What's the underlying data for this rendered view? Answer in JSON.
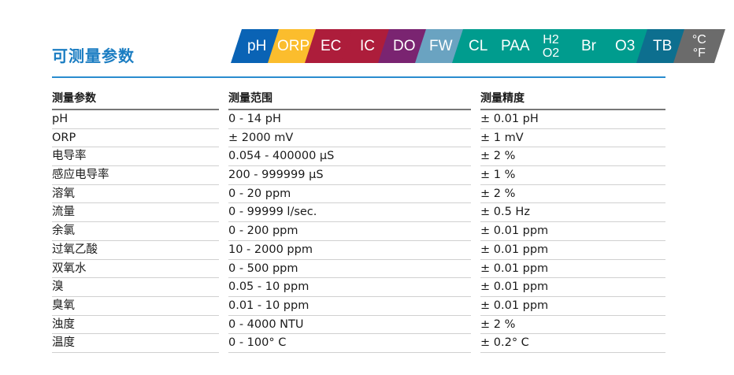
{
  "title": "可测量参数",
  "tiles": [
    {
      "label": "pH",
      "color": "#0a63b5"
    },
    {
      "label": "ORP",
      "color": "#fbbd2d"
    },
    {
      "label": "EC",
      "color": "#ad1d3b"
    },
    {
      "label": "IC",
      "color": "#ad1d3b"
    },
    {
      "label": "DO",
      "color": "#7a2471"
    },
    {
      "label": "FW",
      "color": "#6aa3c1"
    },
    {
      "label": "CL",
      "color": "#009c8e"
    },
    {
      "label": "PAA",
      "color": "#009c8e"
    },
    {
      "label": "H2\nO2",
      "color": "#009c8e"
    },
    {
      "label": "Br",
      "color": "#009c8e"
    },
    {
      "label": "O3",
      "color": "#009c8e"
    },
    {
      "label": "TB",
      "color": "#0d6f8f"
    },
    {
      "label": "°C\n°F",
      "color": "#6b6b6b"
    }
  ],
  "table": {
    "headers": [
      "测量参数",
      "测量范围",
      "测量精度"
    ],
    "rows": [
      [
        "pH",
        "0 - 14 pH",
        "± 0.01 pH"
      ],
      [
        "ORP",
        "± 2000 mV",
        "± 1 mV"
      ],
      [
        "电导率",
        "0.054 - 400000 µS",
        "± 2 %"
      ],
      [
        "感应电导率",
        "200 - 999999 µS",
        "± 1 %"
      ],
      [
        "溶氧",
        "0 - 20 ppm",
        "± 2 %"
      ],
      [
        "流量",
        "0 - 99999 l/sec.",
        "± 0.5 Hz"
      ],
      [
        "余氯",
        "0 - 200 ppm",
        "± 0.01 ppm"
      ],
      [
        "过氧乙酸",
        "10 - 2000 ppm",
        "± 0.01 ppm"
      ],
      [
        "双氧水",
        "0 - 500 ppm",
        "± 0.01 ppm"
      ],
      [
        "溴",
        "0.05 - 10 ppm",
        "± 0.01 ppm"
      ],
      [
        "臭氧",
        "0.01 - 10 ppm",
        "± 0.01 ppm"
      ],
      [
        "浊度",
        "0 - 4000 NTU",
        "± 2 %"
      ],
      [
        "温度",
        "0 - 100° C",
        "± 0.2° C"
      ]
    ]
  }
}
